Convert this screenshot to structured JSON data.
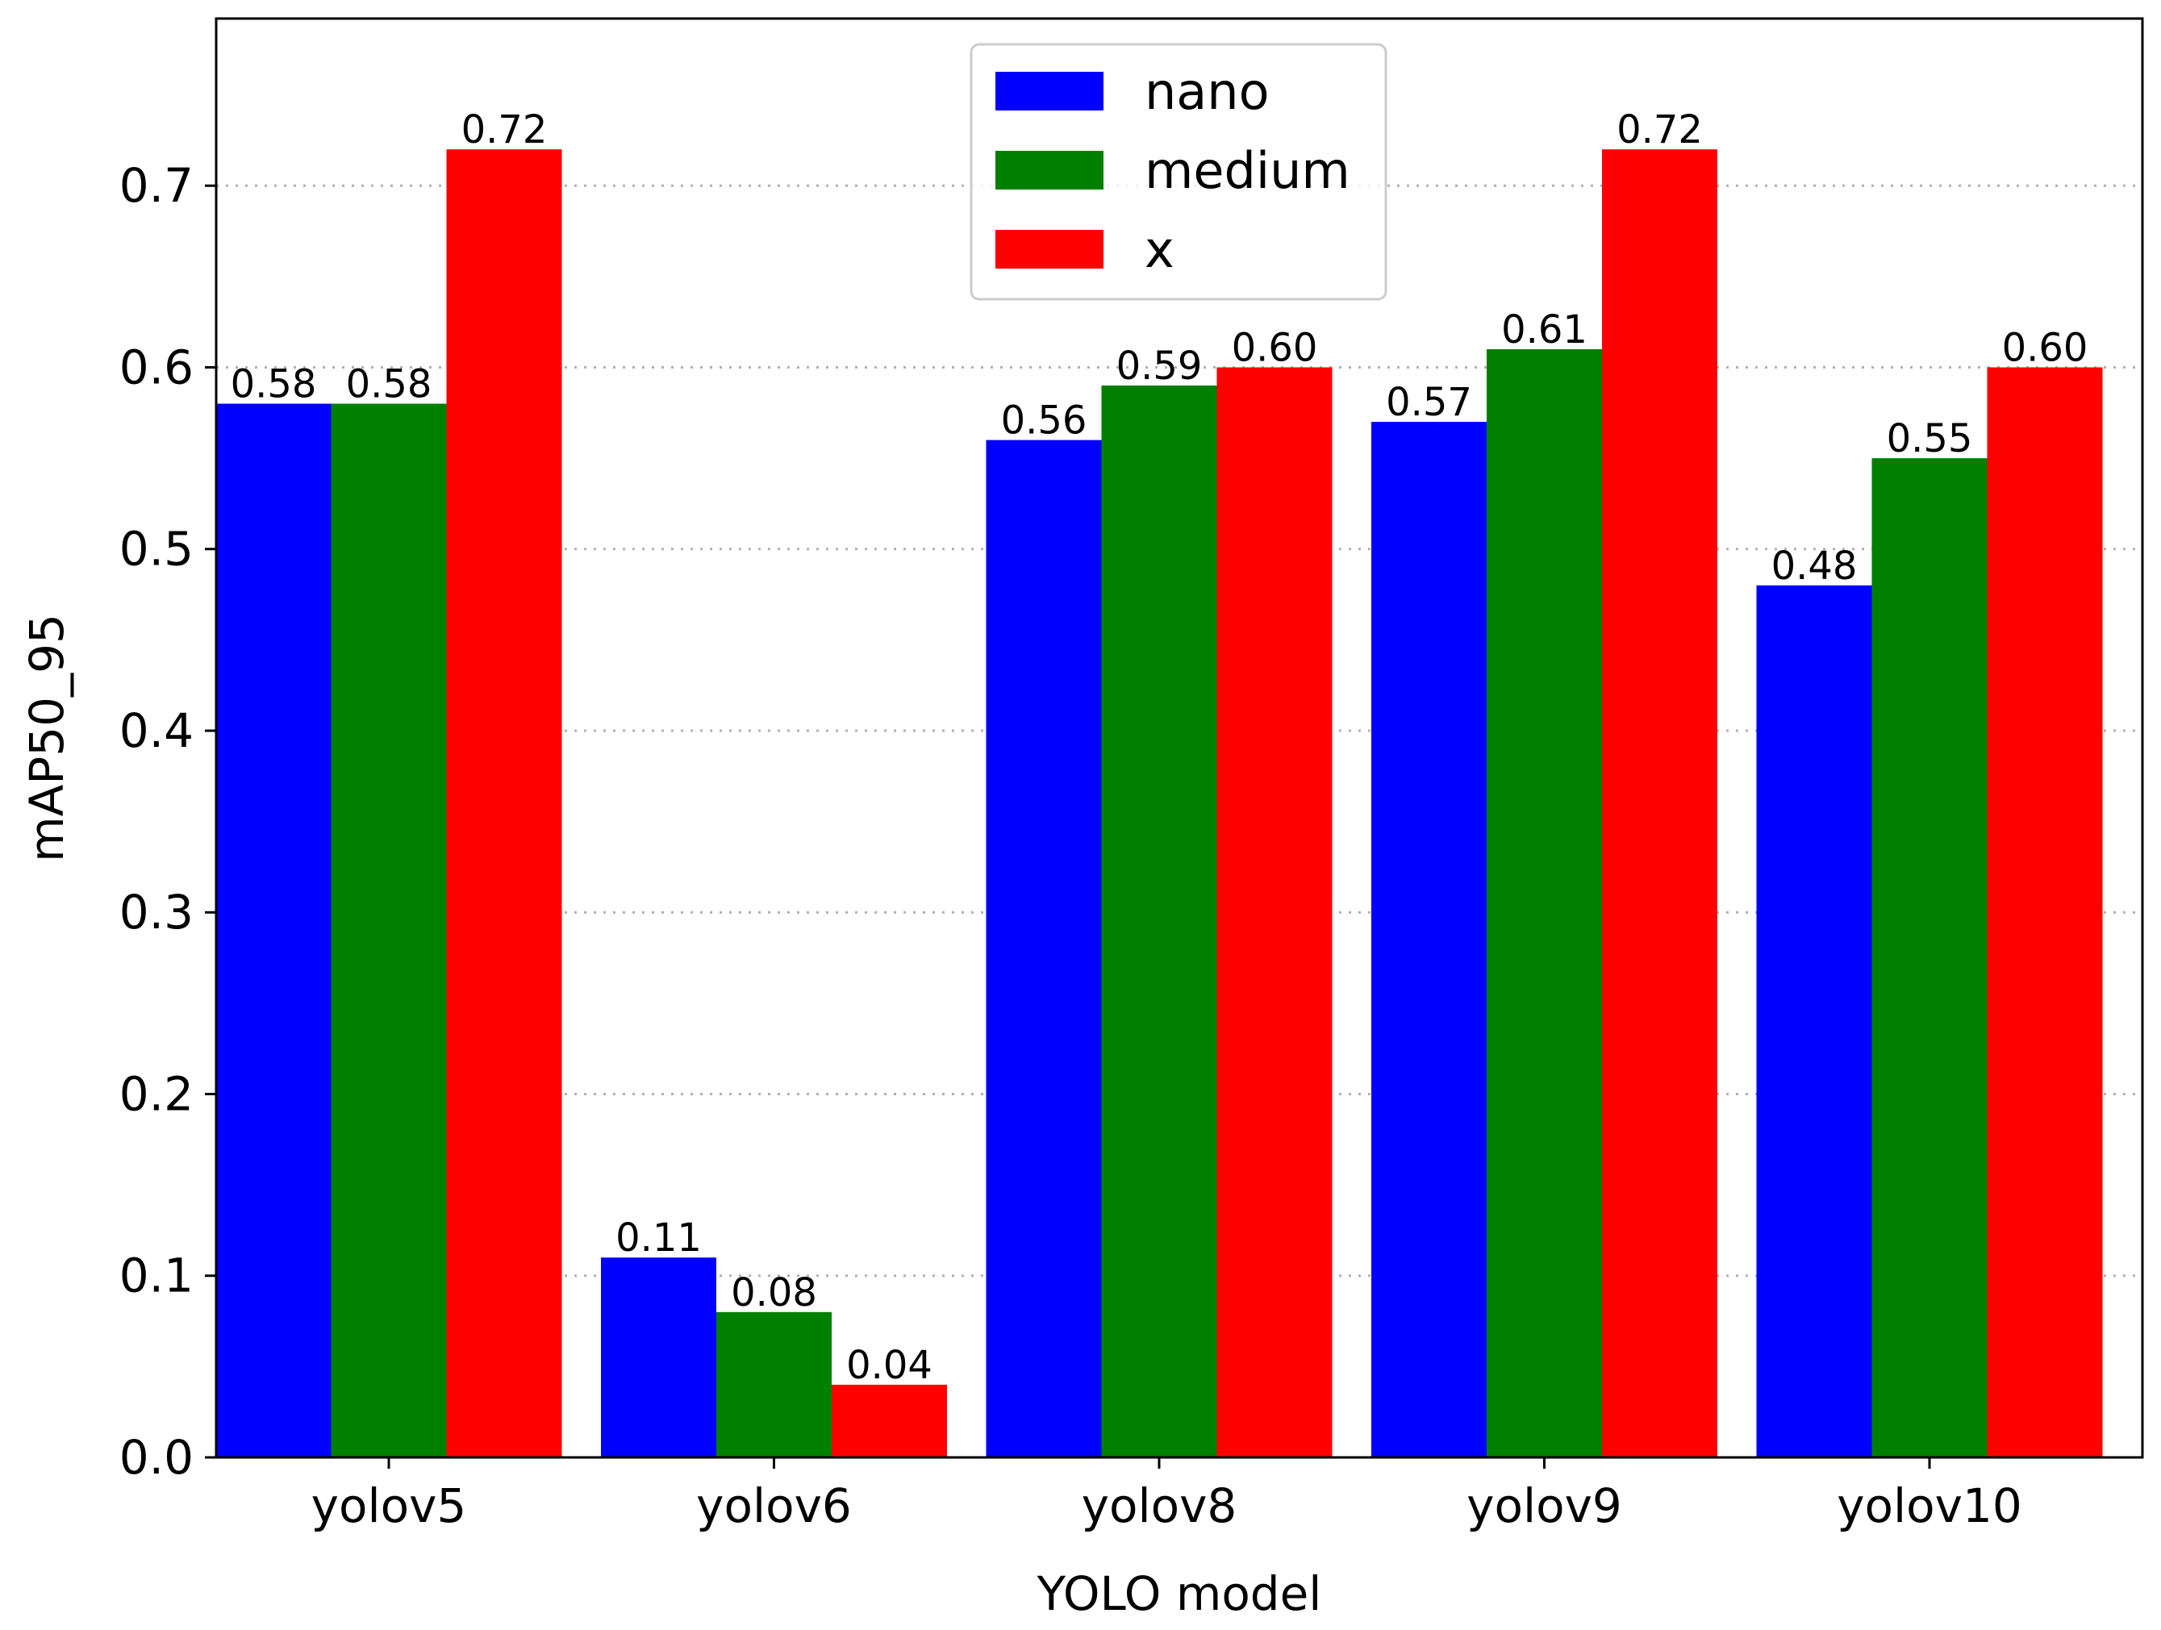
{
  "chart_data": {
    "type": "bar",
    "title": "",
    "xlabel": "YOLO model",
    "ylabel": "mAP50_95",
    "categories": [
      "yolov5",
      "yolov6",
      "yolov8",
      "yolov9",
      "yolov10"
    ],
    "series": [
      {
        "name": "nano",
        "color": "#0000ff",
        "values": [
          0.58,
          0.11,
          0.56,
          0.57,
          0.48
        ],
        "labels": [
          "0.58",
          "0.11",
          "0.56",
          "0.57",
          "0.48"
        ]
      },
      {
        "name": "medium",
        "color": "#008000",
        "values": [
          0.58,
          0.08,
          0.59,
          0.61,
          0.55
        ],
        "labels": [
          "0.58",
          "0.08",
          "0.59",
          "0.61",
          "0.55"
        ]
      },
      {
        "name": "x",
        "color": "#ff0000",
        "values": [
          0.72,
          0.04,
          0.6,
          0.72,
          0.6
        ],
        "labels": [
          "0.72",
          "0.04",
          "0.60",
          "0.72",
          "0.60"
        ]
      }
    ],
    "ylim": [
      0,
      0.792
    ],
    "yticks": [
      0.0,
      0.1,
      0.2,
      0.3,
      0.4,
      0.5,
      0.6,
      0.7
    ],
    "ytick_labels": [
      "0.0",
      "0.1",
      "0.2",
      "0.3",
      "0.4",
      "0.5",
      "0.6",
      "0.7"
    ],
    "grid": "y-dotted",
    "legend_position": "top-center"
  }
}
